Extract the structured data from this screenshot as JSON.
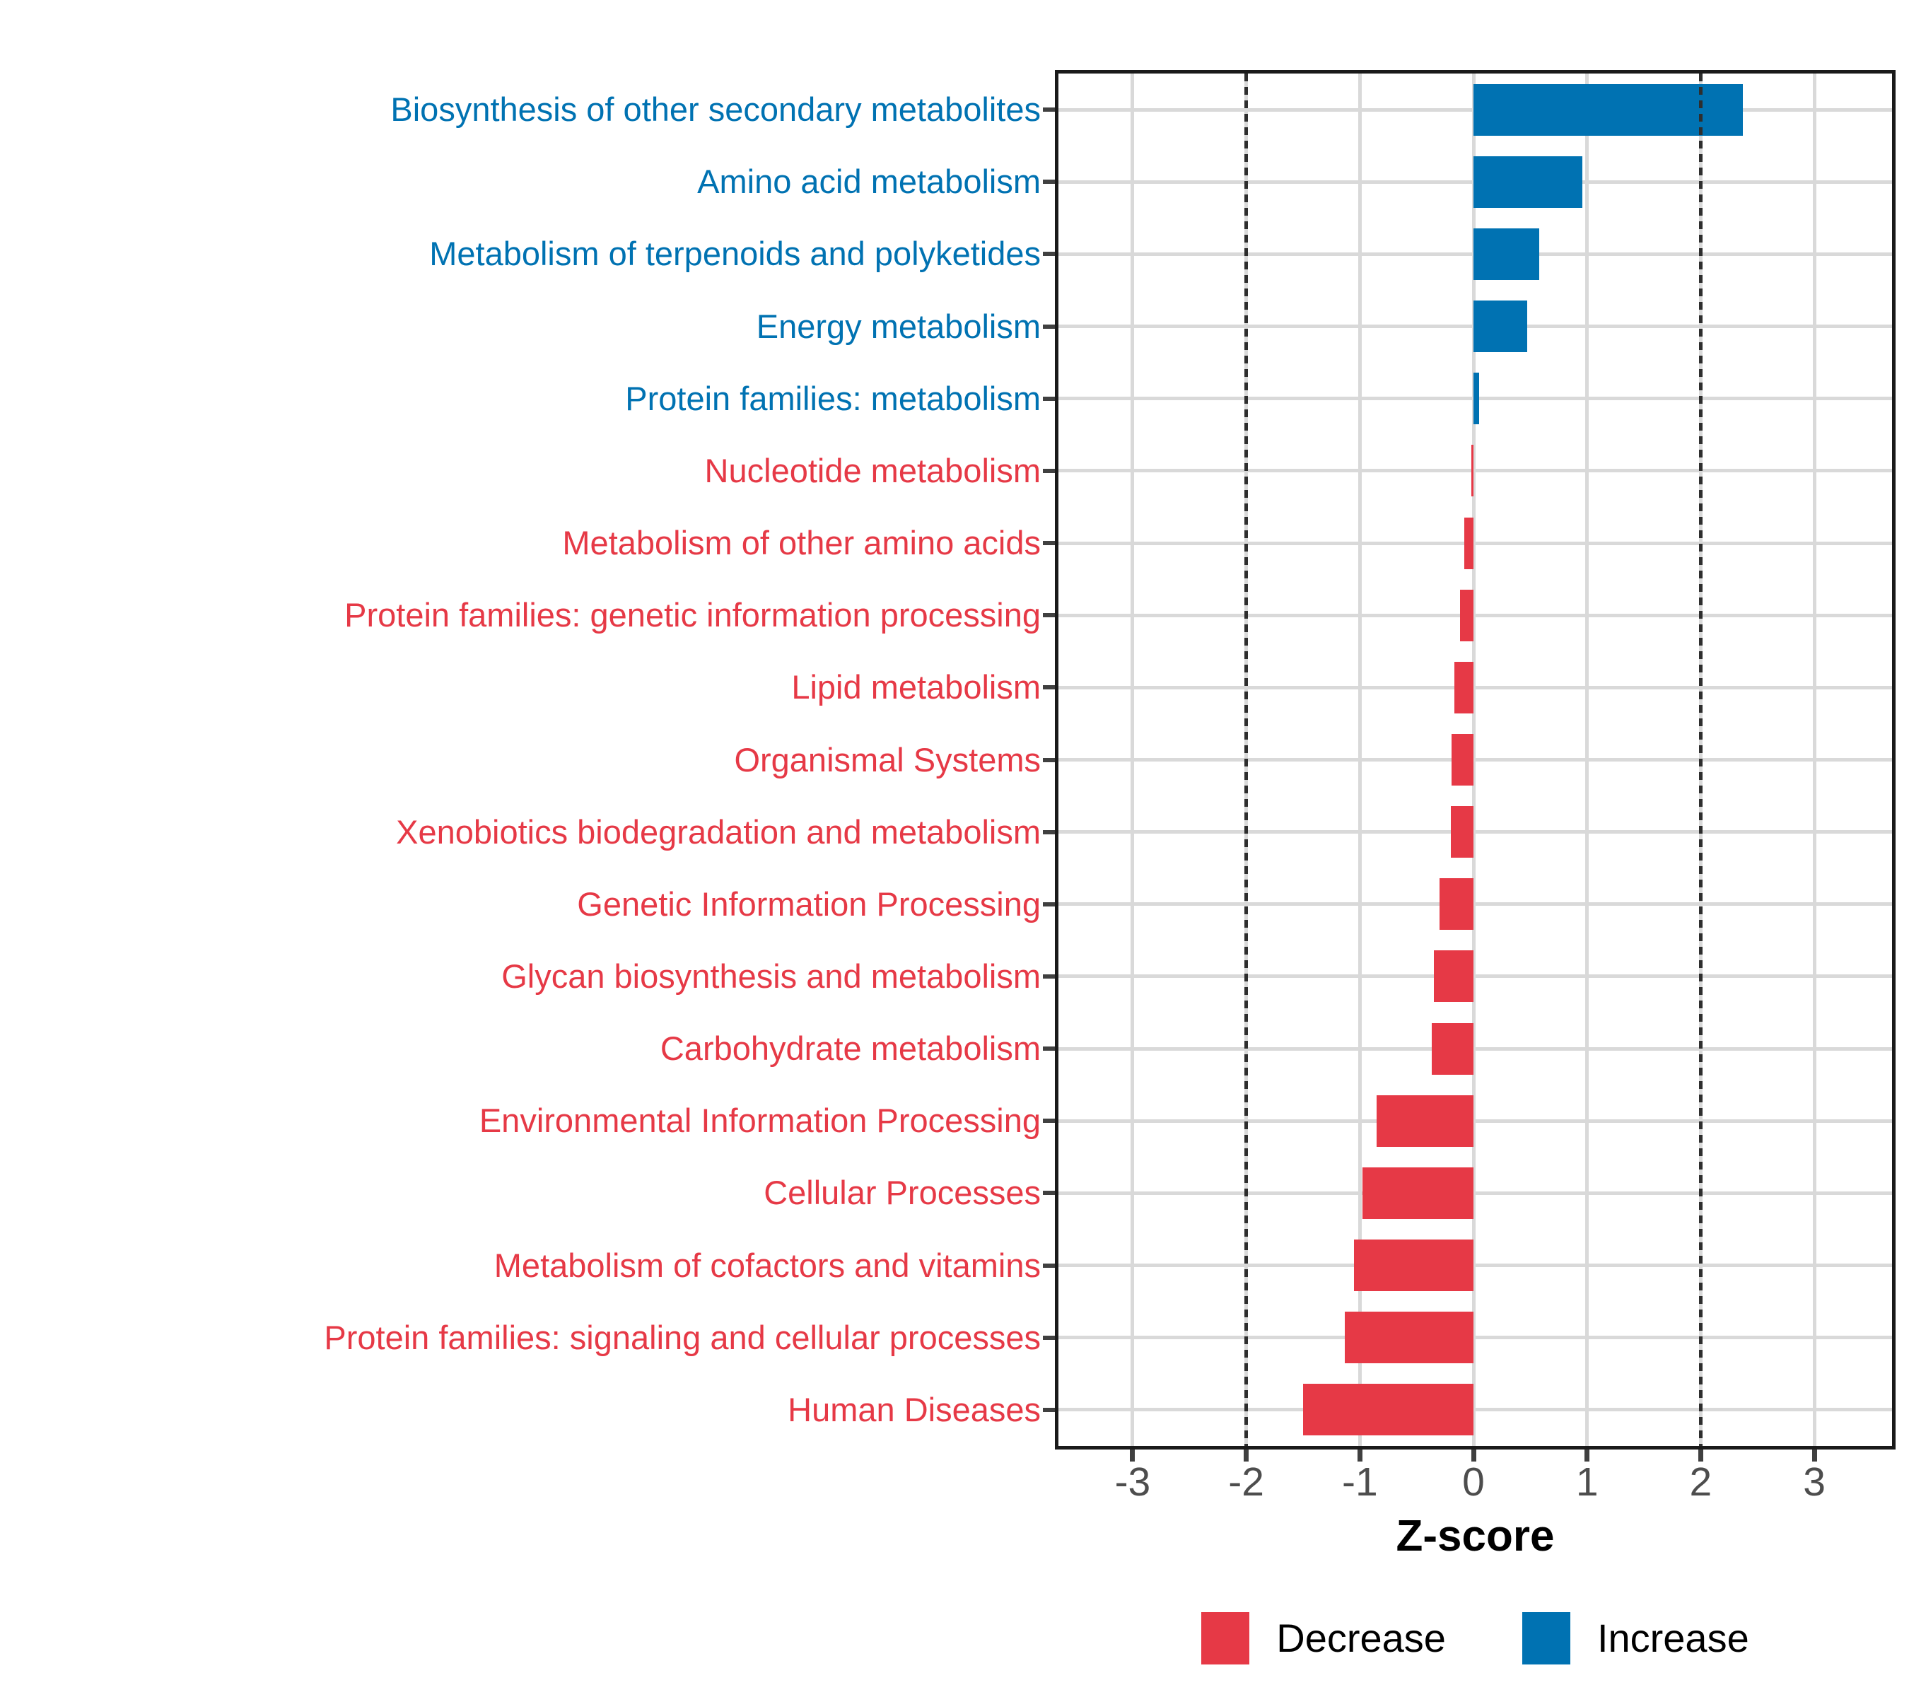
{
  "chart_data": {
    "type": "bar",
    "orientation": "horizontal",
    "title": "",
    "xlabel": "Z-score",
    "ylabel": "",
    "xlim": [
      -3.653,
      3.684
    ],
    "x_ticks": [
      -3,
      -2,
      -1,
      0,
      1,
      2,
      3
    ],
    "x_tick_labels": [
      "-3",
      "-2",
      "-1",
      "0",
      "1",
      "2",
      "3"
    ],
    "reference_lines": [
      -2,
      2
    ],
    "grid": "major",
    "categories": [
      {
        "label": "Biosynthesis of other secondary metabolites",
        "value": 2.37,
        "group": "Increase"
      },
      {
        "label": "Amino acid metabolism",
        "value": 0.96,
        "group": "Increase"
      },
      {
        "label": "Metabolism of terpenoids and polyketides",
        "value": 0.58,
        "group": "Increase"
      },
      {
        "label": "Energy metabolism",
        "value": 0.47,
        "group": "Increase"
      },
      {
        "label": "Protein families: metabolism",
        "value": 0.05,
        "group": "Increase"
      },
      {
        "label": "Nucleotide metabolism",
        "value": -0.02,
        "group": "Decrease"
      },
      {
        "label": "Metabolism of other amino acids",
        "value": -0.08,
        "group": "Decrease"
      },
      {
        "label": "Protein families: genetic information processing",
        "value": -0.12,
        "group": "Decrease"
      },
      {
        "label": "Lipid metabolism",
        "value": -0.17,
        "group": "Decrease"
      },
      {
        "label": "Organismal Systems",
        "value": -0.19,
        "group": "Decrease"
      },
      {
        "label": "Xenobiotics biodegradation and metabolism",
        "value": -0.2,
        "group": "Decrease"
      },
      {
        "label": "Genetic Information Processing",
        "value": -0.3,
        "group": "Decrease"
      },
      {
        "label": "Glycan biosynthesis and metabolism",
        "value": -0.35,
        "group": "Decrease"
      },
      {
        "label": "Carbohydrate metabolism",
        "value": -0.37,
        "group": "Decrease"
      },
      {
        "label": "Environmental Information Processing",
        "value": -0.85,
        "group": "Decrease"
      },
      {
        "label": "Cellular Processes",
        "value": -0.98,
        "group": "Decrease"
      },
      {
        "label": "Metabolism of cofactors and vitamins",
        "value": -1.05,
        "group": "Decrease"
      },
      {
        "label": "Protein families: signaling and cellular processes",
        "value": -1.13,
        "group": "Decrease"
      },
      {
        "label": "Human Diseases",
        "value": -1.5,
        "group": "Decrease"
      }
    ],
    "colors": {
      "Decrease": "#E63946",
      "Increase": "#0072B2",
      "grid": "#D9D9D9",
      "reference_line": "#2E2E2E",
      "panel_border": "#1A1A1A",
      "axis_tick": "#404040",
      "x_tick_text": "#4D4D4D"
    },
    "legend": {
      "position": "bottom",
      "entries": [
        {
          "label": "Decrease",
          "color": "#E63946"
        },
        {
          "label": "Increase",
          "color": "#0072B2"
        }
      ]
    }
  }
}
